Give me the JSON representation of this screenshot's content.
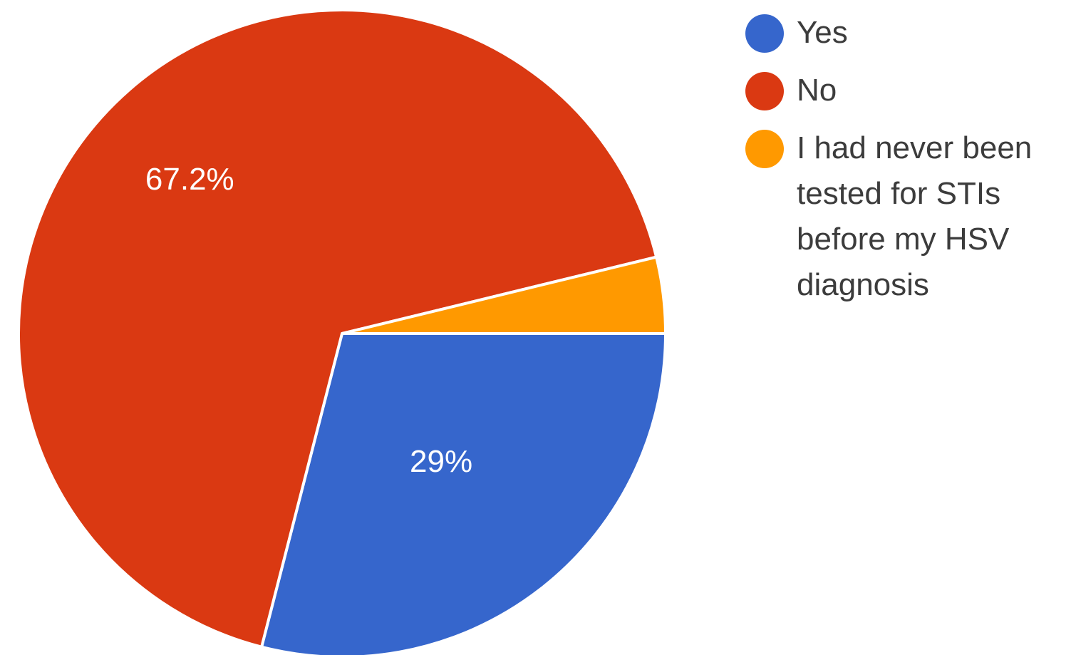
{
  "chart_data": {
    "type": "pie",
    "slices": [
      {
        "name": "Yes",
        "value": 29,
        "label": "29%",
        "color": "#3666cc"
      },
      {
        "name": "No",
        "value": 67.2,
        "label": "67.2%",
        "color": "#da3912"
      },
      {
        "name": "I had never been tested for STIs before my HSV diagnosis",
        "value": 3.8,
        "label": "",
        "color": "#ff9900"
      }
    ],
    "start_angle_deg": 0,
    "direction": "clockwise",
    "legend_position": "right"
  }
}
